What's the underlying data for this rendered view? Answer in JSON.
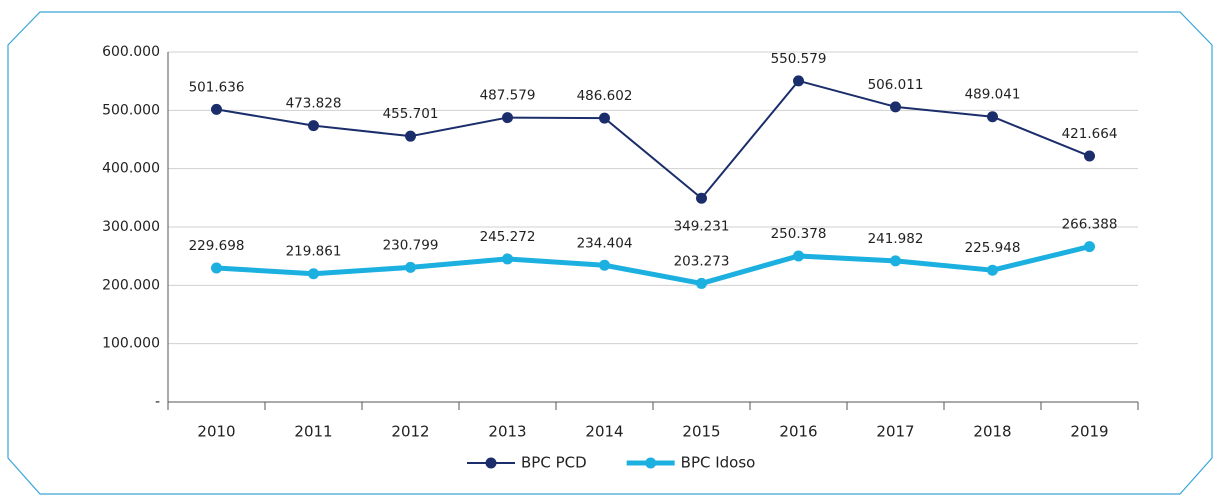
{
  "chart_data": {
    "type": "line",
    "categories": [
      "2010",
      "2011",
      "2012",
      "2013",
      "2014",
      "2015",
      "2016",
      "2017",
      "2018",
      "2019"
    ],
    "series": [
      {
        "name": "BPC PCD",
        "color": "#1b2e6b",
        "values": [
          501636,
          473828,
          455701,
          487579,
          486602,
          349231,
          550579,
          506011,
          489041,
          421664
        ],
        "value_labels": [
          "501.636",
          "473.828",
          "455.701",
          "487.579",
          "486.602",
          "349.231",
          "550.579",
          "506.011",
          "489.041",
          "421.664"
        ]
      },
      {
        "name": "BPC Idoso",
        "color": "#1cb0e0",
        "values": [
          229698,
          219861,
          230799,
          245272,
          234404,
          203273,
          250378,
          241982,
          225948,
          266388
        ],
        "value_labels": [
          "229.698",
          "219.861",
          "230.799",
          "245.272",
          "234.404",
          "203.273",
          "250.378",
          "241.982",
          "225.948",
          "266.388"
        ]
      }
    ],
    "ylim": [
      0,
      600000
    ],
    "yticks": [
      {
        "value": 0,
        "label": "-"
      },
      {
        "value": 100000,
        "label": "100.000"
      },
      {
        "value": 200000,
        "label": "200.000"
      },
      {
        "value": 300000,
        "label": "300.000"
      },
      {
        "value": 400000,
        "label": "400.000"
      },
      {
        "value": 500000,
        "label": "500.000"
      },
      {
        "value": 600000,
        "label": "600.000"
      }
    ],
    "grid": true,
    "legend": "bottom"
  }
}
